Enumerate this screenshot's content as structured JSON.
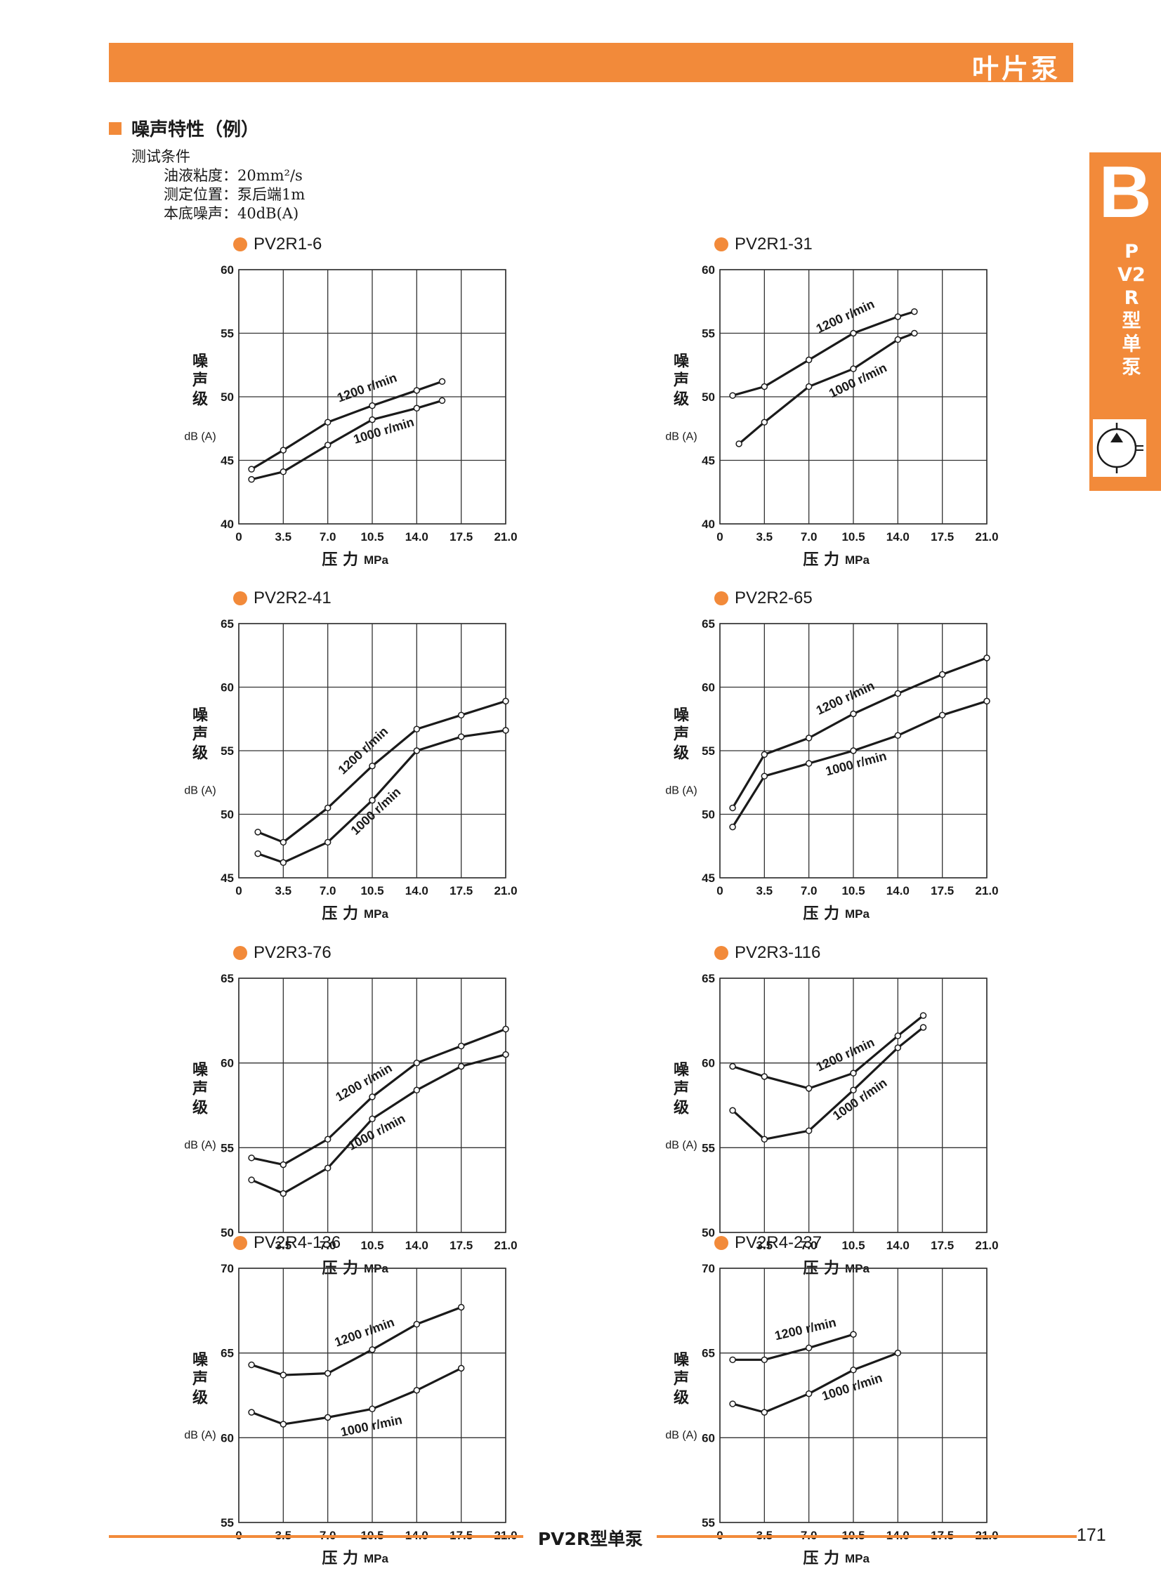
{
  "header": {
    "title": "叶片泵"
  },
  "section": {
    "heading": "噪声特性（例）",
    "conditions_title": "测试条件",
    "conditions": [
      "油液粘度：20mm²/s",
      "测定位置：泵后端1m",
      "本底噪声：40dB(A)"
    ]
  },
  "side_tab": {
    "letter": "B",
    "text": "PV2R型单泵",
    "icon": "vane-pump-symbol-icon"
  },
  "axis_common": {
    "ylabel": "噪声级",
    "yunit": "dB (A)",
    "xlabel": "压 力",
    "xunit": "MPa",
    "xticks": [
      "0",
      "3.5",
      "7.0",
      "10.5",
      "14.0",
      "17.5",
      "21.0"
    ],
    "xlim": [
      0,
      21
    ]
  },
  "colors": {
    "accent": "#f28a3a",
    "line": "#1a1a1a",
    "grid": "#333333"
  },
  "chart_data": [
    {
      "type": "line",
      "title": "PV2R1-6",
      "ylim": [
        40,
        60
      ],
      "yticks": [
        "40",
        "45",
        "50",
        "55",
        "60"
      ],
      "x": [
        1,
        3.5,
        7,
        10.5,
        14,
        16
      ],
      "series": [
        {
          "name": "1200 r/min",
          "values": [
            44.3,
            45.8,
            48.0,
            49.3,
            50.5,
            51.2
          ]
        },
        {
          "name": "1000 r/min",
          "values": [
            43.5,
            44.1,
            46.2,
            48.2,
            49.1,
            49.7
          ]
        }
      ]
    },
    {
      "type": "line",
      "title": "PV2R1-31",
      "ylim": [
        40,
        60
      ],
      "yticks": [
        "40",
        "45",
        "50",
        "55",
        "60"
      ],
      "series": [
        {
          "name": "1200 r/min",
          "x": [
            1,
            3.5,
            7,
            10.5,
            14,
            15.3
          ],
          "values": [
            50.1,
            50.8,
            52.9,
            55.0,
            56.3,
            56.7
          ]
        },
        {
          "name": "1000 r/min",
          "x": [
            1.5,
            3.5,
            7,
            10.5,
            14,
            15.3
          ],
          "values": [
            46.3,
            48.0,
            50.8,
            52.2,
            54.5,
            55.0
          ]
        }
      ]
    },
    {
      "type": "line",
      "title": "PV2R2-41",
      "ylim": [
        45,
        65
      ],
      "yticks": [
        "45",
        "50",
        "55",
        "60",
        "65"
      ],
      "x": [
        1.5,
        3.5,
        7,
        10.5,
        14,
        17.5,
        21
      ],
      "series": [
        {
          "name": "1200 r/min",
          "values": [
            48.6,
            47.8,
            50.5,
            53.8,
            56.7,
            57.8,
            58.9
          ]
        },
        {
          "name": "1000 r/min",
          "values": [
            46.9,
            46.2,
            47.8,
            51.1,
            55.0,
            56.1,
            56.6
          ]
        }
      ]
    },
    {
      "type": "line",
      "title": "PV2R2-65",
      "ylim": [
        45,
        65
      ],
      "yticks": [
        "45",
        "50",
        "55",
        "60",
        "65"
      ],
      "x": [
        1,
        3.5,
        7,
        10.5,
        14,
        17.5,
        21
      ],
      "series": [
        {
          "name": "1200 r/min",
          "values": [
            50.5,
            54.7,
            56.0,
            57.9,
            59.5,
            61.0,
            62.3
          ]
        },
        {
          "name": "1000 r/min",
          "values": [
            49.0,
            53.0,
            54.0,
            55.0,
            56.2,
            57.8,
            58.9
          ]
        }
      ]
    },
    {
      "type": "line",
      "title": "PV2R3-76",
      "ylim": [
        50,
        65
      ],
      "yticks": [
        "50",
        "55",
        "60",
        "65"
      ],
      "x": [
        1,
        3.5,
        7,
        10.5,
        14,
        17.5,
        21
      ],
      "series": [
        {
          "name": "1200 r/min",
          "values": [
            54.4,
            54.0,
            55.5,
            58.0,
            60.0,
            61.0,
            62.0
          ]
        },
        {
          "name": "1000 r/min",
          "values": [
            53.1,
            52.3,
            53.8,
            56.7,
            58.4,
            59.8,
            60.5
          ]
        }
      ]
    },
    {
      "type": "line",
      "title": "PV2R3-116",
      "ylim": [
        50,
        65
      ],
      "yticks": [
        "50",
        "55",
        "60",
        "65"
      ],
      "x": [
        1,
        3.5,
        7,
        10.5,
        14,
        16
      ],
      "series": [
        {
          "name": "1200 r/min",
          "values": [
            59.8,
            59.2,
            58.5,
            59.4,
            61.6,
            62.8
          ]
        },
        {
          "name": "1000 r/min",
          "values": [
            57.2,
            55.5,
            56.0,
            58.4,
            60.9,
            62.1
          ]
        }
      ]
    },
    {
      "type": "line",
      "title": "PV2R4-136",
      "ylim": [
        55,
        70
      ],
      "yticks": [
        "55",
        "60",
        "65",
        "70"
      ],
      "x": [
        1,
        3.5,
        7,
        10.5,
        14,
        17.5
      ],
      "series": [
        {
          "name": "1200 r/min",
          "values": [
            64.3,
            63.7,
            63.8,
            65.2,
            66.7,
            67.7
          ]
        },
        {
          "name": "1000 r/min",
          "values": [
            61.5,
            60.8,
            61.2,
            61.7,
            62.8,
            64.1
          ]
        }
      ]
    },
    {
      "type": "line",
      "title": "PV2R4-237",
      "ylim": [
        55,
        70
      ],
      "yticks": [
        "55",
        "60",
        "65",
        "70"
      ],
      "series": [
        {
          "name": "1200 r/min",
          "x": [
            1,
            3.5,
            7,
            10.5
          ],
          "values": [
            64.6,
            64.6,
            65.3,
            66.1
          ]
        },
        {
          "name": "1000 r/min",
          "x": [
            1,
            3.5,
            7,
            10.5,
            14
          ],
          "values": [
            62.0,
            61.5,
            62.6,
            64.0,
            65.0
          ]
        }
      ]
    }
  ],
  "footer": {
    "title": "PV2R型单泵",
    "page": "171"
  }
}
